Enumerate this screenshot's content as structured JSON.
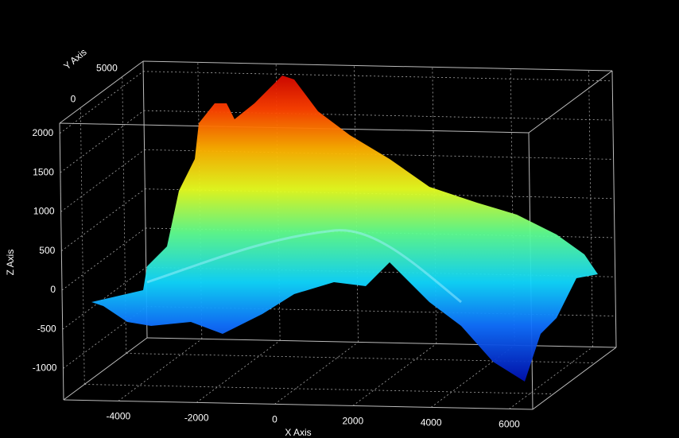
{
  "chart_data": {
    "type": "surface3d",
    "x_label": "X Axis",
    "y_label": "Y Axis",
    "z_label": "Z Axis",
    "xlim": [
      -5400,
      6600
    ],
    "xticks": [
      -4000,
      -2000,
      0,
      2000,
      4000,
      6000
    ],
    "ylim": [
      -2500,
      7500
    ],
    "yticks": [
      0,
      5000
    ],
    "zlim": [
      -1400,
      2130
    ],
    "zticks": [
      -1000,
      -500,
      0,
      500,
      1000,
      1500,
      2000
    ],
    "grid": true,
    "colormap": "jet"
  }
}
